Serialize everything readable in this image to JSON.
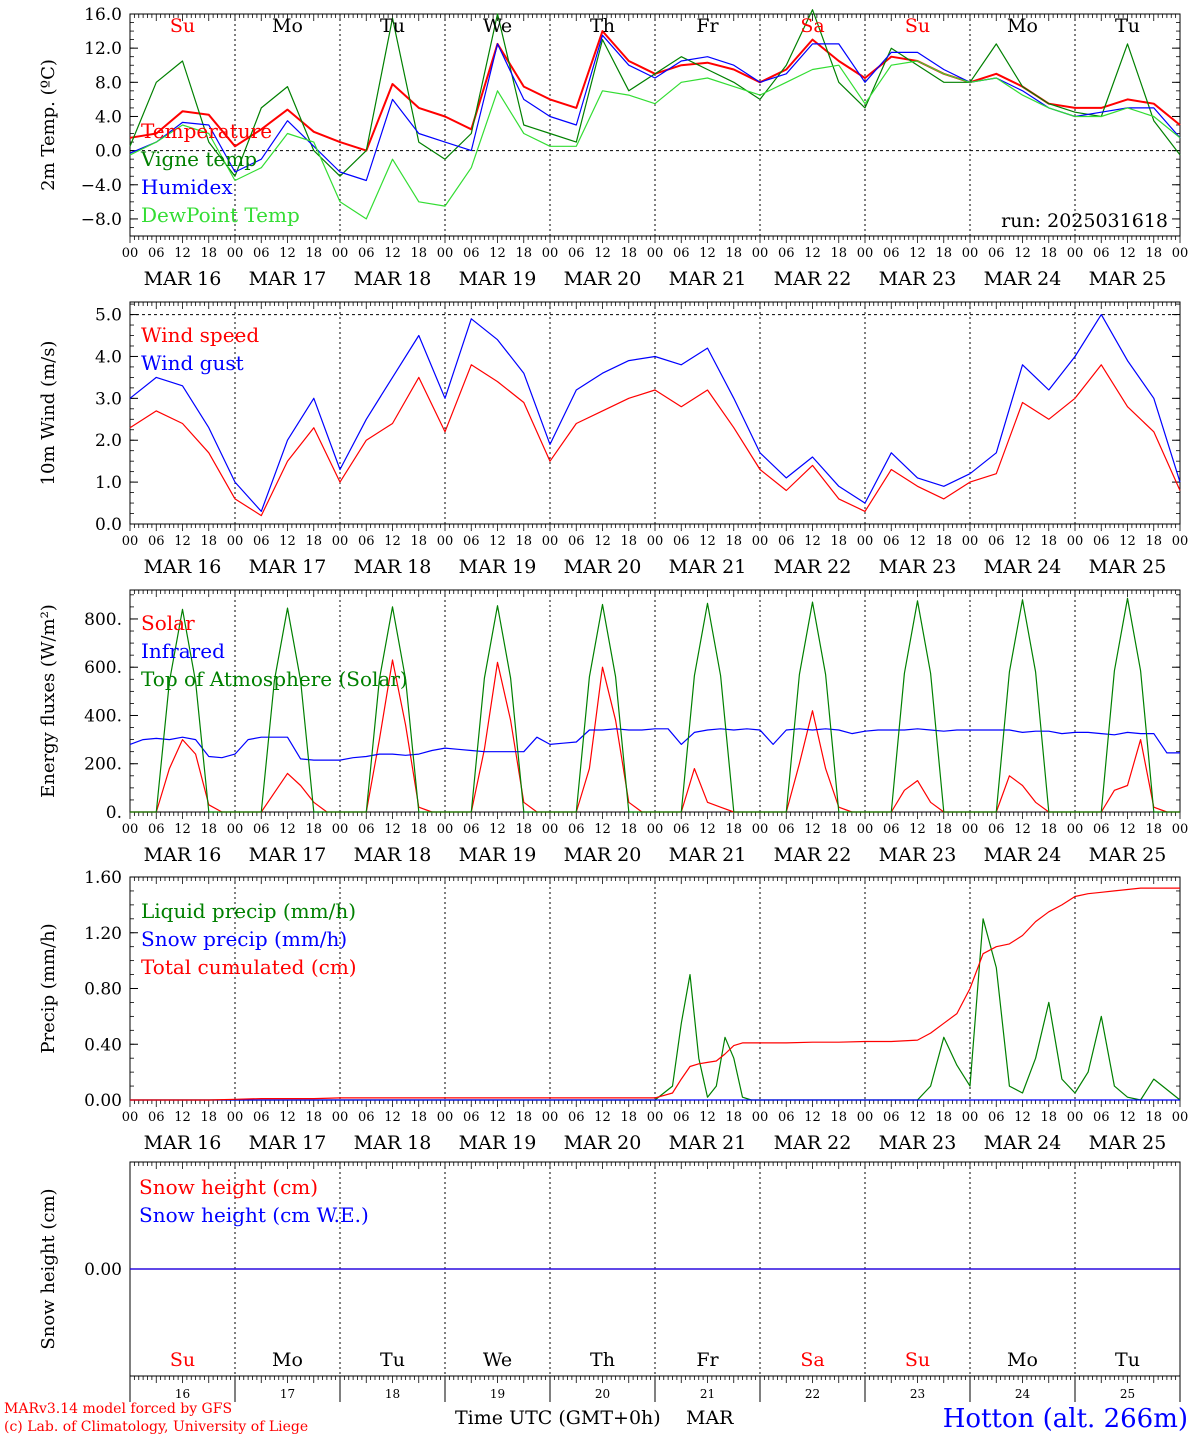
{
  "page": {
    "run_label": "run: 2025031618",
    "station": "Hotton (alt. 266m)",
    "credit_line1": "MARv3.14 model forced by GFS",
    "credit_line2": "(c) Lab. of Climatology, University of Liege",
    "time_axis_label": "Time UTC (GMT+0h)",
    "month_label": "MAR"
  },
  "colors": {
    "red": "#ff0000",
    "blue": "#0000ff",
    "green": "#008000",
    "light_green": "#33dd33",
    "grid": "#000000"
  },
  "days": [
    {
      "abbr": "Su",
      "date": "MAR 16",
      "num": "16",
      "weekend": true
    },
    {
      "abbr": "Mo",
      "date": "MAR 17",
      "num": "17",
      "weekend": false
    },
    {
      "abbr": "Tu",
      "date": "MAR 18",
      "num": "18",
      "weekend": false
    },
    {
      "abbr": "We",
      "date": "MAR 19",
      "num": "19",
      "weekend": false
    },
    {
      "abbr": "Th",
      "date": "MAR 20",
      "num": "20",
      "weekend": false
    },
    {
      "abbr": "Fr",
      "date": "MAR 21",
      "num": "21",
      "weekend": false
    },
    {
      "abbr": "Sa",
      "date": "MAR 22",
      "num": "22",
      "weekend": true
    },
    {
      "abbr": "Su",
      "date": "MAR 23",
      "num": "23",
      "weekend": true
    },
    {
      "abbr": "Mo",
      "date": "MAR 24",
      "num": "24",
      "weekend": false
    },
    {
      "abbr": "Tu",
      "date": "MAR 25",
      "num": "25",
      "weekend": false
    }
  ],
  "hour_ticks": [
    "00",
    "06",
    "12",
    "18"
  ],
  "chart_data": [
    {
      "id": "temperature",
      "type": "line",
      "ylabel": "2m Temp. (ºC)",
      "ylim": [
        -10,
        16
      ],
      "yticks": [
        -8,
        -4,
        0,
        4,
        8,
        12,
        16
      ],
      "ytick_labels": [
        "−8.0",
        "−4.0",
        "0.0",
        "4.0",
        "8.0",
        "12.0",
        "16.0"
      ],
      "dashed_y": [
        0
      ],
      "x_hours": [
        0,
        6,
        12,
        18,
        24,
        30,
        36,
        42,
        48,
        54,
        60,
        66,
        72,
        78,
        84,
        90,
        96,
        102,
        108,
        114,
        120,
        126,
        132,
        138,
        144,
        150,
        156,
        162,
        168,
        174,
        180,
        186,
        192,
        198,
        204,
        210,
        216,
        222,
        228,
        234,
        240
      ],
      "series": [
        {
          "name": "Temperature",
          "color": "red",
          "values": [
            1.5,
            2.0,
            4.6,
            4.2,
            0.5,
            2.5,
            4.8,
            2.2,
            1.0,
            0.0,
            7.8,
            5.0,
            4.0,
            2.5,
            12.5,
            7.5,
            6.0,
            5.0,
            14.0,
            10.5,
            9.0,
            10.0,
            10.3,
            9.5,
            8.0,
            9.5,
            13.0,
            10.5,
            8.5,
            11.0,
            10.5,
            9.0,
            8.0,
            9.0,
            7.5,
            5.5,
            5.0,
            5.0,
            6.0,
            5.5,
            3.0
          ]
        },
        {
          "name": "Vigne temp",
          "color": "green",
          "values": [
            0.5,
            8.0,
            10.5,
            1.0,
            -3.0,
            5.0,
            7.5,
            0.0,
            -3.0,
            0.0,
            15.5,
            1.0,
            -1.0,
            2.0,
            16.0,
            3.0,
            2.0,
            1.0,
            13.0,
            7.0,
            9.0,
            11.0,
            9.5,
            8.0,
            6.0,
            10.0,
            16.5,
            8.0,
            5.0,
            12.0,
            10.0,
            8.0,
            8.0,
            12.5,
            7.5,
            5.5,
            4.5,
            4.0,
            12.5,
            3.5,
            -0.5
          ]
        },
        {
          "name": "Humidex",
          "color": "blue",
          "values": [
            -0.3,
            1.0,
            3.3,
            3.0,
            -2.5,
            -1.0,
            3.5,
            0.5,
            -2.5,
            -3.5,
            6.0,
            2.0,
            1.0,
            0.0,
            12.5,
            6.0,
            4.0,
            3.0,
            13.5,
            10.0,
            8.5,
            10.5,
            11.0,
            10.0,
            8.0,
            9.0,
            12.5,
            12.5,
            8.0,
            11.5,
            11.5,
            9.5,
            8.0,
            8.5,
            7.0,
            5.0,
            4.0,
            4.5,
            5.0,
            5.0,
            1.5
          ]
        },
        {
          "name": "DewPoint Temp",
          "color": "light_green",
          "values": [
            -0.5,
            1.0,
            3.0,
            2.0,
            -3.5,
            -2.0,
            2.0,
            1.0,
            -6.0,
            -8.0,
            -1.0,
            -6.0,
            -6.5,
            -2.0,
            7.0,
            2.0,
            0.5,
            0.5,
            7.0,
            6.5,
            5.5,
            8.0,
            8.5,
            7.5,
            6.5,
            8.0,
            9.5,
            10.0,
            5.5,
            10.0,
            10.5,
            9.0,
            8.0,
            8.5,
            6.5,
            5.0,
            4.0,
            4.0,
            5.0,
            4.0,
            1.5
          ]
        }
      ]
    },
    {
      "id": "wind",
      "type": "line",
      "ylabel": "10m Wind (m/s)",
      "ylim": [
        0,
        5.3
      ],
      "yticks": [
        0,
        1,
        2,
        3,
        4,
        5
      ],
      "ytick_labels": [
        "0.0",
        "1.0",
        "2.0",
        "3.0",
        "4.0",
        "5.0"
      ],
      "dashed_y": [
        5
      ],
      "x_hours": [
        0,
        6,
        12,
        18,
        24,
        30,
        36,
        42,
        48,
        54,
        60,
        66,
        72,
        78,
        84,
        90,
        96,
        102,
        108,
        114,
        120,
        126,
        132,
        138,
        144,
        150,
        156,
        162,
        168,
        174,
        180,
        186,
        192,
        198,
        204,
        210,
        216,
        222,
        228,
        234,
        240
      ],
      "series": [
        {
          "name": "Wind speed",
          "color": "red",
          "values": [
            2.3,
            2.7,
            2.4,
            1.7,
            0.6,
            0.2,
            1.5,
            2.3,
            1.0,
            2.0,
            2.4,
            3.5,
            2.2,
            3.8,
            3.4,
            2.9,
            1.5,
            2.4,
            2.7,
            3.0,
            3.2,
            2.8,
            3.2,
            2.3,
            1.3,
            0.8,
            1.4,
            0.6,
            0.3,
            1.3,
            0.9,
            0.6,
            1.0,
            1.2,
            2.9,
            2.5,
            3.0,
            3.8,
            2.8,
            2.2,
            0.8
          ]
        },
        {
          "name": "Wind gust",
          "color": "blue",
          "values": [
            3.0,
            3.5,
            3.3,
            2.3,
            1.0,
            0.3,
            2.0,
            3.0,
            1.3,
            2.5,
            3.5,
            4.5,
            3.0,
            4.9,
            4.4,
            3.6,
            1.9,
            3.2,
            3.6,
            3.9,
            4.0,
            3.8,
            4.2,
            3.0,
            1.7,
            1.1,
            1.6,
            0.9,
            0.5,
            1.7,
            1.1,
            0.9,
            1.2,
            1.7,
            3.8,
            3.2,
            4.0,
            5.0,
            3.9,
            3.0,
            1.0
          ]
        }
      ]
    },
    {
      "id": "fluxes",
      "type": "line",
      "ylabel": "Energy fluxes (W/m²)",
      "ylim": [
        0,
        920
      ],
      "yticks": [
        0,
        200,
        400,
        600,
        800
      ],
      "ytick_labels": [
        "0.",
        "200.",
        "400.",
        "600.",
        "800."
      ],
      "dashed_y": [],
      "x_hours": [
        0,
        3,
        6,
        9,
        12,
        15,
        18,
        21,
        24,
        27,
        30,
        33,
        36,
        39,
        42,
        45,
        48,
        51,
        54,
        57,
        60,
        63,
        66,
        69,
        72,
        75,
        78,
        81,
        84,
        87,
        90,
        93,
        96,
        99,
        102,
        105,
        108,
        111,
        114,
        117,
        120,
        123,
        126,
        129,
        132,
        135,
        138,
        141,
        144,
        147,
        150,
        153,
        156,
        159,
        162,
        165,
        168,
        171,
        174,
        177,
        180,
        183,
        186,
        189,
        192,
        195,
        198,
        201,
        204,
        207,
        210,
        213,
        216,
        219,
        222,
        225,
        228,
        231,
        234,
        237,
        240
      ],
      "series": [
        {
          "name": "Solar",
          "color": "red",
          "values": [
            0,
            0,
            0,
            180,
            300,
            240,
            30,
            0,
            0,
            0,
            0,
            80,
            160,
            110,
            40,
            0,
            0,
            0,
            0,
            300,
            630,
            360,
            20,
            0,
            0,
            0,
            0,
            260,
            620,
            380,
            40,
            0,
            0,
            0,
            0,
            180,
            600,
            380,
            40,
            0,
            0,
            0,
            0,
            180,
            40,
            20,
            0,
            0,
            0,
            0,
            0,
            200,
            420,
            180,
            20,
            0,
            0,
            0,
            0,
            90,
            130,
            40,
            0,
            0,
            0,
            0,
            0,
            150,
            110,
            40,
            0,
            0,
            0,
            0,
            0,
            90,
            110,
            300,
            20,
            0,
            0
          ]
        },
        {
          "name": "Infrared",
          "color": "blue",
          "values": [
            280,
            300,
            305,
            300,
            310,
            300,
            230,
            225,
            240,
            300,
            310,
            310,
            310,
            220,
            215,
            215,
            215,
            225,
            230,
            240,
            240,
            235,
            240,
            255,
            265,
            260,
            255,
            250,
            250,
            250,
            250,
            310,
            280,
            285,
            290,
            340,
            340,
            345,
            340,
            340,
            345,
            345,
            280,
            330,
            340,
            345,
            340,
            345,
            340,
            280,
            340,
            345,
            340,
            345,
            340,
            325,
            335,
            340,
            340,
            340,
            345,
            340,
            335,
            340,
            340,
            340,
            340,
            340,
            330,
            335,
            335,
            325,
            330,
            330,
            325,
            320,
            330,
            325,
            325,
            245,
            245
          ]
        },
        {
          "name": "Top of Atmosphere (Solar)",
          "color": "green",
          "values": [
            0,
            0,
            0,
            540,
            840,
            540,
            0,
            0,
            0,
            0,
            0,
            545,
            845,
            545,
            0,
            0,
            0,
            0,
            0,
            550,
            850,
            550,
            0,
            0,
            0,
            0,
            0,
            555,
            855,
            555,
            0,
            0,
            0,
            0,
            0,
            560,
            860,
            560,
            0,
            0,
            0,
            0,
            0,
            565,
            865,
            565,
            0,
            0,
            0,
            0,
            0,
            570,
            870,
            570,
            0,
            0,
            0,
            0,
            0,
            575,
            875,
            575,
            0,
            0,
            0,
            0,
            0,
            580,
            880,
            580,
            0,
            0,
            0,
            0,
            0,
            585,
            885,
            585,
            0,
            0,
            0
          ]
        }
      ]
    },
    {
      "id": "precip",
      "type": "line",
      "ylabel": "Precip (mm/h)",
      "ylim": [
        0,
        1.6
      ],
      "yticks": [
        0,
        0.4,
        0.8,
        1.2,
        1.6
      ],
      "ytick_labels": [
        "0.00",
        "0.40",
        "0.80",
        "1.20",
        "1.60"
      ],
      "dashed_y": [],
      "x_hours": [
        0,
        6,
        12,
        18,
        24,
        30,
        36,
        42,
        48,
        54,
        60,
        66,
        72,
        78,
        84,
        90,
        96,
        102,
        108,
        114,
        120,
        124,
        126,
        128,
        130,
        132,
        134,
        136,
        138,
        140,
        142,
        144,
        150,
        156,
        162,
        168,
        174,
        180,
        183,
        186,
        189,
        192,
        195,
        198,
        201,
        204,
        207,
        210,
        213,
        216,
        219,
        222,
        225,
        228,
        231,
        234,
        240
      ],
      "series": [
        {
          "name": "Liquid precip (mm/h)",
          "color": "green",
          "values": [
            0,
            0,
            0,
            0,
            0,
            0,
            0,
            0,
            0,
            0,
            0,
            0,
            0,
            0,
            0,
            0,
            0,
            0,
            0,
            0,
            0,
            0.1,
            0.55,
            0.9,
            0.3,
            0.02,
            0.1,
            0.45,
            0.3,
            0.02,
            0,
            0,
            0,
            0,
            0,
            0,
            0,
            0,
            0.1,
            0.45,
            0.25,
            0.1,
            1.3,
            0.95,
            0.1,
            0.05,
            0.3,
            0.7,
            0.15,
            0.05,
            0.2,
            0.6,
            0.1,
            0.02,
            0,
            0.15,
            0
          ]
        },
        {
          "name": "Snow precip (mm/h)",
          "color": "blue",
          "values": [
            0,
            0,
            0,
            0,
            0,
            0,
            0,
            0,
            0,
            0,
            0,
            0,
            0,
            0,
            0,
            0,
            0,
            0,
            0,
            0,
            0,
            0,
            0,
            0,
            0,
            0,
            0,
            0,
            0,
            0,
            0,
            0,
            0,
            0,
            0,
            0,
            0,
            0,
            0,
            0,
            0,
            0,
            0,
            0,
            0,
            0,
            0,
            0,
            0,
            0,
            0,
            0,
            0,
            0,
            0,
            0,
            0
          ]
        },
        {
          "name": "Total cumulated (cm)",
          "color": "red",
          "values": [
            0,
            0,
            0,
            0,
            0.005,
            0.01,
            0.01,
            0.01,
            0.015,
            0.015,
            0.015,
            0.015,
            0.015,
            0.015,
            0.015,
            0.015,
            0.015,
            0.015,
            0.015,
            0.015,
            0.015,
            0.05,
            0.15,
            0.24,
            0.26,
            0.27,
            0.28,
            0.33,
            0.39,
            0.41,
            0.41,
            0.41,
            0.41,
            0.415,
            0.415,
            0.42,
            0.42,
            0.43,
            0.48,
            0.55,
            0.62,
            0.8,
            1.05,
            1.1,
            1.12,
            1.18,
            1.28,
            1.35,
            1.4,
            1.46,
            1.48,
            1.49,
            1.5,
            1.51,
            1.52,
            1.52,
            1.52
          ]
        }
      ]
    },
    {
      "id": "snow",
      "type": "line",
      "ylabel": "Snow height (cm)",
      "ylim": [
        -1,
        1
      ],
      "yticks": [
        0
      ],
      "ytick_labels": [
        "0.00"
      ],
      "dashed_y": [],
      "x_hours": [
        0,
        240
      ],
      "series": [
        {
          "name": "Snow height (cm)",
          "color": "red",
          "values": [
            0,
            0
          ]
        },
        {
          "name": "Snow height (cm W.E.)",
          "color": "blue",
          "values": [
            0,
            0
          ]
        }
      ]
    }
  ]
}
